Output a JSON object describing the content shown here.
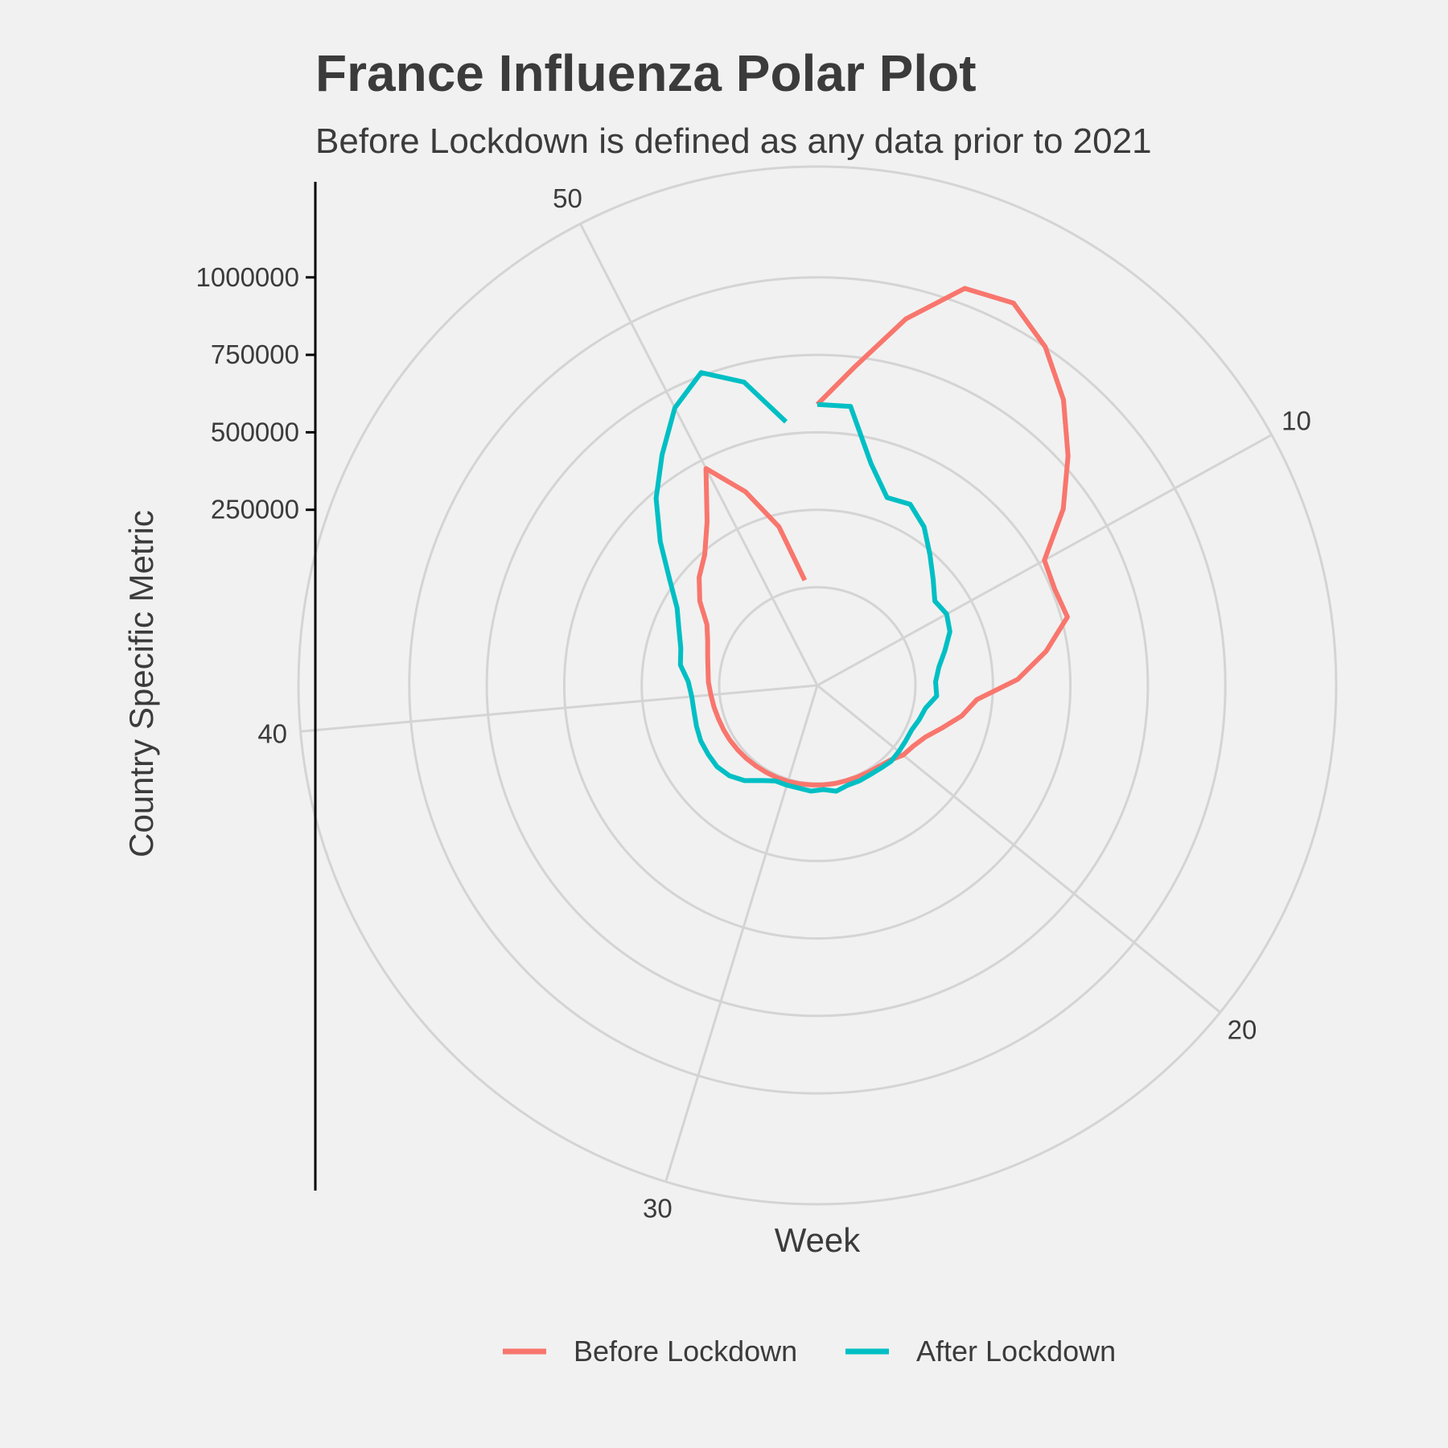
{
  "title": "France Influenza Polar Plot",
  "subtitle": "Before Lockdown is defined as any data prior to 2021",
  "chart_data": {
    "type": "line",
    "coord": "polar",
    "title": "France Influenza Polar Plot",
    "subtitle": "Before Lockdown is defined as any data prior to 2021",
    "xlabel": "Week",
    "ylabel": "Country Specific Metric",
    "theta_ticks": [
      "10",
      "20",
      "30",
      "40",
      "50"
    ],
    "theta_tick_values": [
      10,
      20,
      30,
      40,
      50
    ],
    "theta_range": [
      1,
      53
    ],
    "r_ticks": [
      "250000",
      "500000",
      "750000",
      "1000000"
    ],
    "r_tick_values": [
      250000,
      500000,
      750000,
      1000000
    ],
    "r_range": [
      0,
      1150000
    ],
    "grid": true,
    "legend_position": "bottom",
    "series": [
      {
        "name": "Before Lockdown",
        "color": "#f8766d",
        "x": [
          1,
          2,
          3,
          4,
          5,
          6,
          7,
          8,
          9,
          10,
          11,
          12,
          13,
          14,
          15,
          16,
          17,
          18,
          19,
          20,
          21,
          22,
          23,
          24,
          25,
          26,
          27,
          28,
          29,
          30,
          31,
          32,
          33,
          34,
          35,
          36,
          37,
          38,
          39,
          40,
          41,
          42,
          43,
          44,
          45,
          46,
          47,
          48,
          49,
          50,
          51,
          52,
          53
        ],
        "values": [
          590000,
          720000,
          900000,
          1050000,
          1070000,
          1000000,
          900000,
          780000,
          660000,
          520000,
          510000,
          520000,
          430000,
          330000,
          200000,
          160000,
          110000,
          70000,
          50000,
          40000,
          20000,
          12000,
          8000,
          6000,
          5000,
          5000,
          5000,
          5000,
          6000,
          7000,
          8000,
          9000,
          10000,
          12000,
          14000,
          16000,
          18000,
          20000,
          24000,
          28000,
          35000,
          40000,
          50000,
          65000,
          90000,
          150000,
          200000,
          240000,
          320000,
          470000,
          350000,
          210000,
          25000
        ]
      },
      {
        "name": "After Lockdown",
        "color": "#00bfc4",
        "x": [
          1,
          2,
          3,
          4,
          5,
          6,
          7,
          8,
          9,
          10,
          11,
          12,
          13,
          14,
          15,
          16,
          17,
          18,
          19,
          20,
          21,
          22,
          23,
          24,
          25,
          26,
          27,
          28,
          29,
          30,
          31,
          32,
          33,
          34,
          35,
          36,
          37,
          38,
          39,
          40,
          41,
          42,
          43,
          44,
          45,
          46,
          47,
          48,
          49,
          50,
          51,
          52,
          53
        ],
        "values": [
          590000,
          590000,
          420000,
          330000,
          340000,
          300000,
          240000,
          190000,
          150000,
          160000,
          145000,
          110000,
          80000,
          65000,
          70000,
          40000,
          30000,
          20000,
          20000,
          22000,
          25000,
          20000,
          18000,
          20000,
          20000,
          30000,
          20000,
          25000,
          20000,
          20000,
          20000,
          40000,
          70000,
          90000,
          100000,
          100000,
          100000,
          95000,
          90000,
          90000,
          100000,
          130000,
          140000,
          165000,
          200000,
          270000,
          370000,
          480000,
          580000,
          690000,
          760000,
          690000,
          540000
        ]
      }
    ]
  }
}
